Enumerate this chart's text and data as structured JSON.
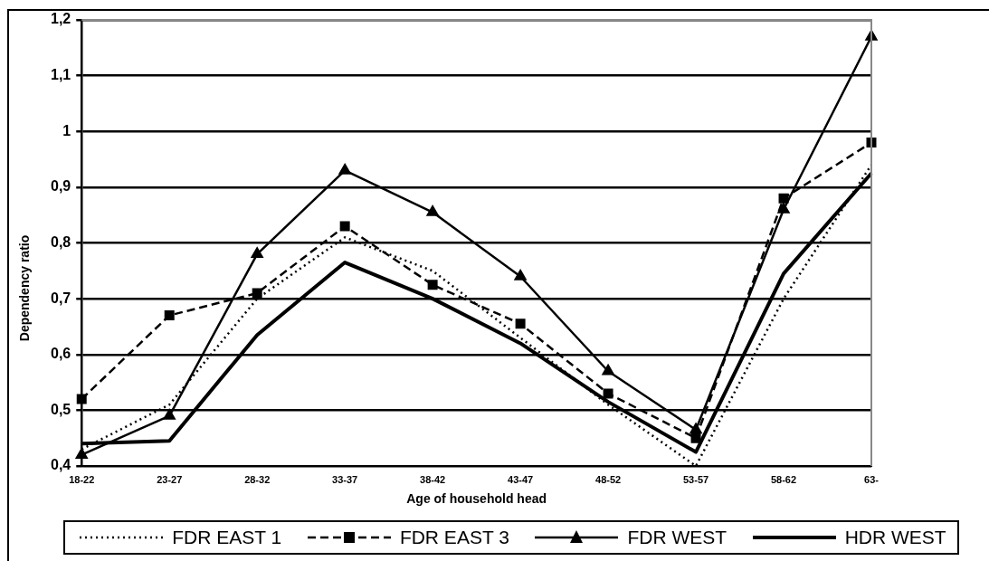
{
  "chart_data": {
    "type": "line",
    "xlabel": "Age of household head",
    "ylabel": "Dependency ratio",
    "categories": [
      "18-22",
      "23-27",
      "28-32",
      "33-37",
      "38-42",
      "43-47",
      "48-52",
      "53-57",
      "58-62",
      "63-"
    ],
    "series": [
      {
        "name": "FDR EAST 1",
        "color": "#000000",
        "line_style": "dotted",
        "marker": "none",
        "values": [
          0.43,
          0.51,
          0.7,
          0.81,
          0.75,
          0.63,
          0.51,
          0.4,
          0.7,
          0.94
        ]
      },
      {
        "name": "FDR EAST 3",
        "color": "#000000",
        "line_style": "dashed",
        "marker": "square",
        "values": [
          0.52,
          0.67,
          0.71,
          0.83,
          0.725,
          0.655,
          0.53,
          0.45,
          0.88,
          0.98
        ]
      },
      {
        "name": "FDR WEST",
        "color": "#000000",
        "line_style": "solid",
        "marker": "triangle",
        "values": [
          0.42,
          0.49,
          0.78,
          0.93,
          0.855,
          0.74,
          0.57,
          0.465,
          0.86,
          1.17
        ]
      },
      {
        "name": "HDR WEST",
        "color": "#000000",
        "line_style": "solid",
        "marker": "none",
        "values": [
          0.44,
          0.445,
          0.635,
          0.765,
          0.7,
          0.62,
          0.515,
          0.425,
          0.745,
          0.925
        ]
      }
    ],
    "ylim": [
      0.4,
      1.2
    ],
    "yticks": [
      {
        "value": 0.4,
        "label": "0,4"
      },
      {
        "value": 0.5,
        "label": "0,5"
      },
      {
        "value": 0.6,
        "label": "0,6"
      },
      {
        "value": 0.7,
        "label": "0,7"
      },
      {
        "value": 0.8,
        "label": "0,8"
      },
      {
        "value": 0.9,
        "label": "0,9"
      },
      {
        "value": 1,
        "label": "1"
      },
      {
        "value": 1.1,
        "label": "1,1"
      },
      {
        "value": 1.2,
        "label": "1,2"
      }
    ],
    "grid": "y",
    "legend": "bottom"
  }
}
